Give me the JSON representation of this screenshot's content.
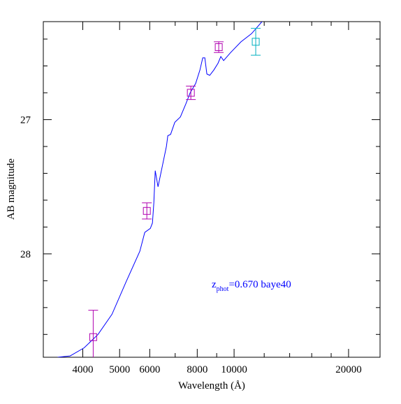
{
  "chart_data": {
    "type": "sed",
    "xlabel": "Wavelength (Å)",
    "ylabel": "AB magnitude",
    "annotation": {
      "text": "z",
      "subscript": "phot",
      "rest": "=0.670 baye40",
      "color": "#0000ff"
    },
    "xscale": "log",
    "xlim": [
      3150,
      24200
    ],
    "ylim": [
      28.77,
      26.27
    ],
    "xticks": [
      4000,
      5000,
      6000,
      8000,
      10000,
      20000
    ],
    "xminor": [
      7000,
      9000,
      12000,
      14000,
      16000,
      18000
    ],
    "yticks": [
      27,
      28
    ],
    "yminor": [
      26.4,
      26.6,
      26.8,
      27.2,
      27.4,
      27.6,
      27.8,
      28.2,
      28.4,
      28.6
    ],
    "series": [
      {
        "kind": "line",
        "color": "#0000ff",
        "x": [
          3435,
          3705,
          4032,
          4387,
          4774,
          5195,
          5652,
          5822,
          6022,
          6099,
          6152,
          6204,
          6310,
          6471,
          6637,
          6694,
          6808,
          6982,
          7225,
          7473,
          7665,
          7925,
          8131,
          8270,
          8375,
          8480,
          8627,
          8846,
          9073,
          9228,
          9387,
          9790,
          10430,
          11110,
          11840
        ],
        "values": [
          28.77,
          28.76,
          28.7,
          28.6,
          28.45,
          28.21,
          27.98,
          27.84,
          27.81,
          27.77,
          27.62,
          27.38,
          27.5,
          27.35,
          27.2,
          27.12,
          27.11,
          27.02,
          26.98,
          26.88,
          26.8,
          26.73,
          26.63,
          26.54,
          26.54,
          26.66,
          26.67,
          26.63,
          26.58,
          26.53,
          26.56,
          26.5,
          26.42,
          26.36,
          26.27
        ]
      },
      {
        "kind": "points",
        "color": "#b000b0",
        "x": [
          4261,
          5896,
          7696,
          9112
        ],
        "values": [
          28.62,
          27.68,
          26.8,
          26.46
        ],
        "errors": [
          0.2,
          0.06,
          0.05,
          0.04
        ]
      },
      {
        "kind": "points",
        "color": "#00b0c0",
        "x": [
          11400
        ],
        "values": [
          26.42
        ],
        "errors": [
          0.1
        ]
      }
    ]
  }
}
